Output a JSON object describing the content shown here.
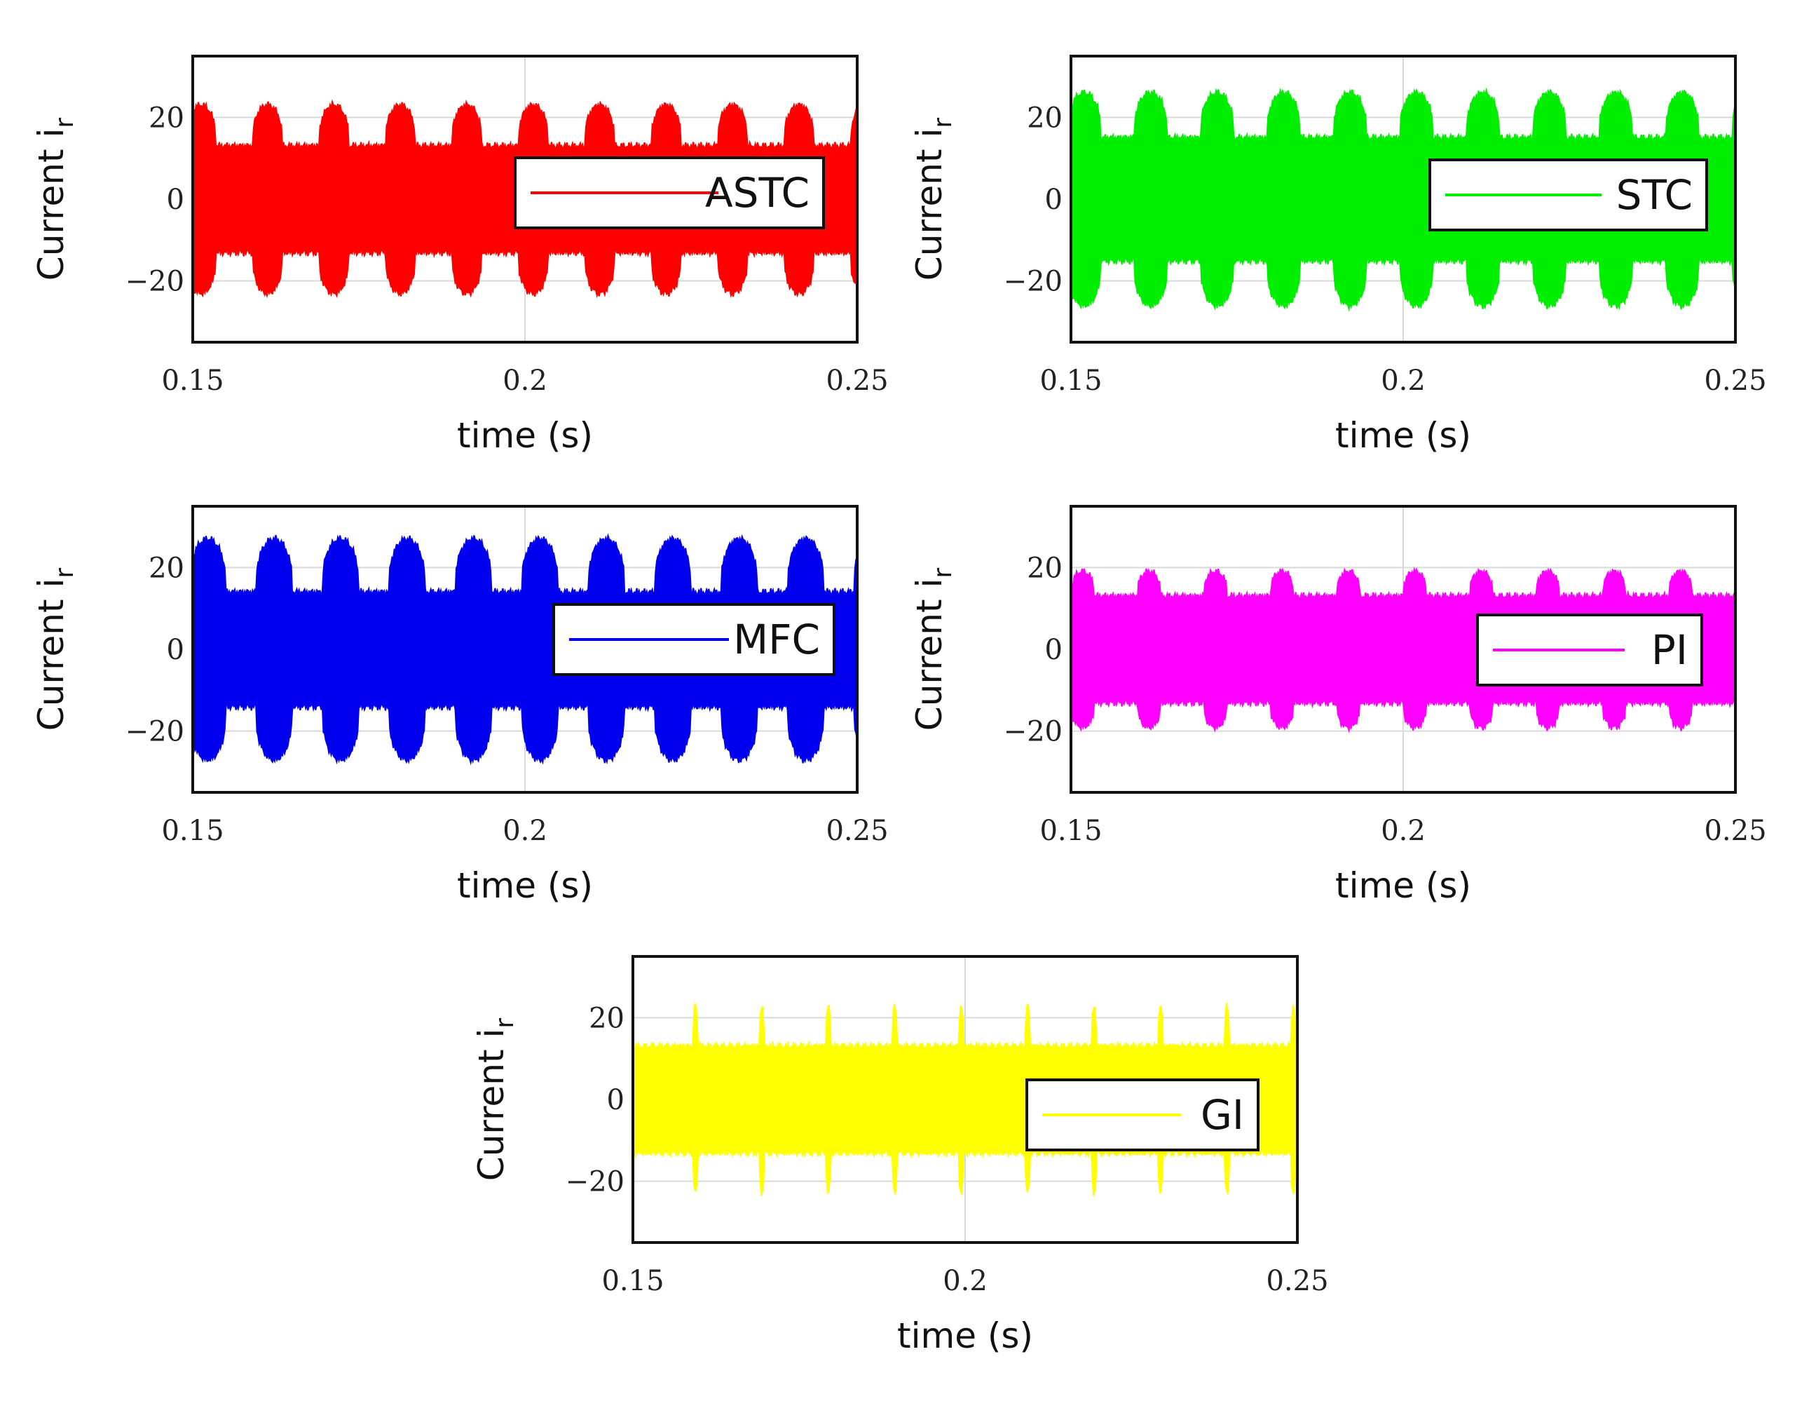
{
  "chart_data": [
    {
      "type": "area",
      "series": [
        {
          "name": "ASTC",
          "color": "#ff0000",
          "base_amp": 13,
          "burst_amp": 23,
          "burst_period": 0.01,
          "burst_duty": 0.45,
          "burst_phase": 0.1
        }
      ],
      "xlabel": "time (s)",
      "ylabel": "Current i",
      "ylabel_sub": "r",
      "xlim": [
        0.15,
        0.25
      ],
      "ylim": [
        -35,
        35
      ],
      "xticks": [
        0.15,
        0.2,
        0.25
      ],
      "xtick_labels": [
        "0.15",
        "0.2",
        "0.25"
      ],
      "yticks": [
        20,
        0,
        -20
      ],
      "ytick_labels": [
        "20",
        "0",
        "−20"
      ],
      "grid": true,
      "legend": "right"
    },
    {
      "type": "area",
      "series": [
        {
          "name": "STC",
          "color": "#00ee00",
          "base_amp": 15,
          "burst_amp": 26,
          "burst_period": 0.01,
          "burst_duty": 0.5,
          "burst_phase": 0.05
        }
      ],
      "xlabel": "time (s)",
      "ylabel": "Current i",
      "ylabel_sub": "r",
      "xlim": [
        0.15,
        0.25
      ],
      "ylim": [
        -35,
        35
      ],
      "xticks": [
        0.15,
        0.2,
        0.25
      ],
      "xtick_labels": [
        "0.15",
        "0.2",
        "0.25"
      ],
      "yticks": [
        20,
        0,
        -20
      ],
      "ytick_labels": [
        "20",
        "0",
        "−20"
      ],
      "grid": true,
      "legend": "right"
    },
    {
      "type": "area",
      "series": [
        {
          "name": "MFC",
          "color": "#0000ee",
          "base_amp": 14,
          "burst_amp": 27,
          "burst_period": 0.01,
          "burst_duty": 0.55,
          "burst_phase": 0.05
        }
      ],
      "xlabel": "time (s)",
      "ylabel": "Current i",
      "ylabel_sub": "r",
      "xlim": [
        0.15,
        0.25
      ],
      "ylim": [
        -35,
        35
      ],
      "xticks": [
        0.15,
        0.2,
        0.25
      ],
      "xtick_labels": [
        "0.15",
        "0.2",
        "0.25"
      ],
      "yticks": [
        20,
        0,
        -20
      ],
      "ytick_labels": [
        "20",
        "0",
        "−20"
      ],
      "grid": true,
      "legend": "right"
    },
    {
      "type": "area",
      "series": [
        {
          "name": "PI",
          "color": "#ff00ff",
          "base_amp": 13,
          "burst_amp": 19,
          "burst_period": 0.01,
          "burst_duty": 0.35,
          "burst_phase": 0.0
        }
      ],
      "xlabel": "time (s)",
      "ylabel": "Current i",
      "ylabel_sub": "r",
      "xlim": [
        0.15,
        0.25
      ],
      "ylim": [
        -35,
        35
      ],
      "xticks": [
        0.15,
        0.2,
        0.25
      ],
      "xtick_labels": [
        "0.15",
        "0.2",
        "0.25"
      ],
      "yticks": [
        20,
        0,
        -20
      ],
      "ytick_labels": [
        "20",
        "0",
        "−20"
      ],
      "grid": true,
      "legend": "right"
    },
    {
      "type": "area",
      "series": [
        {
          "name": "GI",
          "color": "#ffff00",
          "base_amp": 13,
          "burst_amp": 23,
          "burst_period": 0.01,
          "burst_duty": 0.08,
          "burst_phase": 0.1
        }
      ],
      "xlabel": "time (s)",
      "ylabel": "Current i",
      "ylabel_sub": "r",
      "xlim": [
        0.15,
        0.25
      ],
      "ylim": [
        -35,
        35
      ],
      "xticks": [
        0.15,
        0.2,
        0.25
      ],
      "xtick_labels": [
        "0.15",
        "0.2",
        "0.25"
      ],
      "yticks": [
        20,
        0,
        -20
      ],
      "ytick_labels": [
        "20",
        "0",
        "−20"
      ],
      "grid": true,
      "legend": "right"
    }
  ]
}
